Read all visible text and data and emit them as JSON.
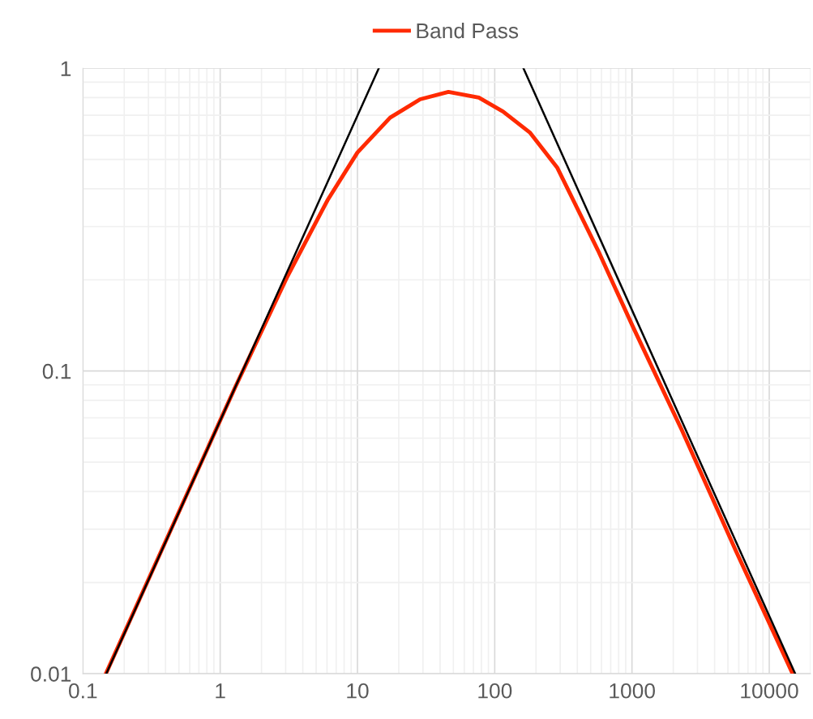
{
  "chart_data": {
    "type": "line",
    "log": "xy",
    "grid": true,
    "legend": "top",
    "line_style": "solid",
    "marker": "none",
    "xlim": [
      0.1,
      20000
    ],
    "ylim": [
      0.01,
      1
    ],
    "xticks": [
      0.1,
      1,
      10,
      100,
      1000,
      10000
    ],
    "yticks": [
      0.01,
      0.1,
      1
    ],
    "series": [
      {
        "name": "Band Pass",
        "color": "#ff2a00",
        "x": [
          0.147,
          1.29,
          3.05,
          6.04,
          10,
          17.3,
          28.6,
          46,
          76.6,
          115,
          180,
          286,
          566,
          1016,
          2300,
          5730,
          14800
        ],
        "values": [
          0.01,
          0.0887,
          0.203,
          0.366,
          0.527,
          0.687,
          0.79,
          0.836,
          0.8,
          0.72,
          0.614,
          0.469,
          0.25,
          0.14,
          0.064,
          0.0254,
          0.01
        ]
      },
      {
        "color": "#000000",
        "x": [
          0.148,
          14.3
        ],
        "values": [
          0.01,
          1
        ]
      },
      {
        "color": "#000000",
        "x": [
          162,
          15450
        ],
        "values": [
          1,
          0.01
        ]
      }
    ]
  }
}
